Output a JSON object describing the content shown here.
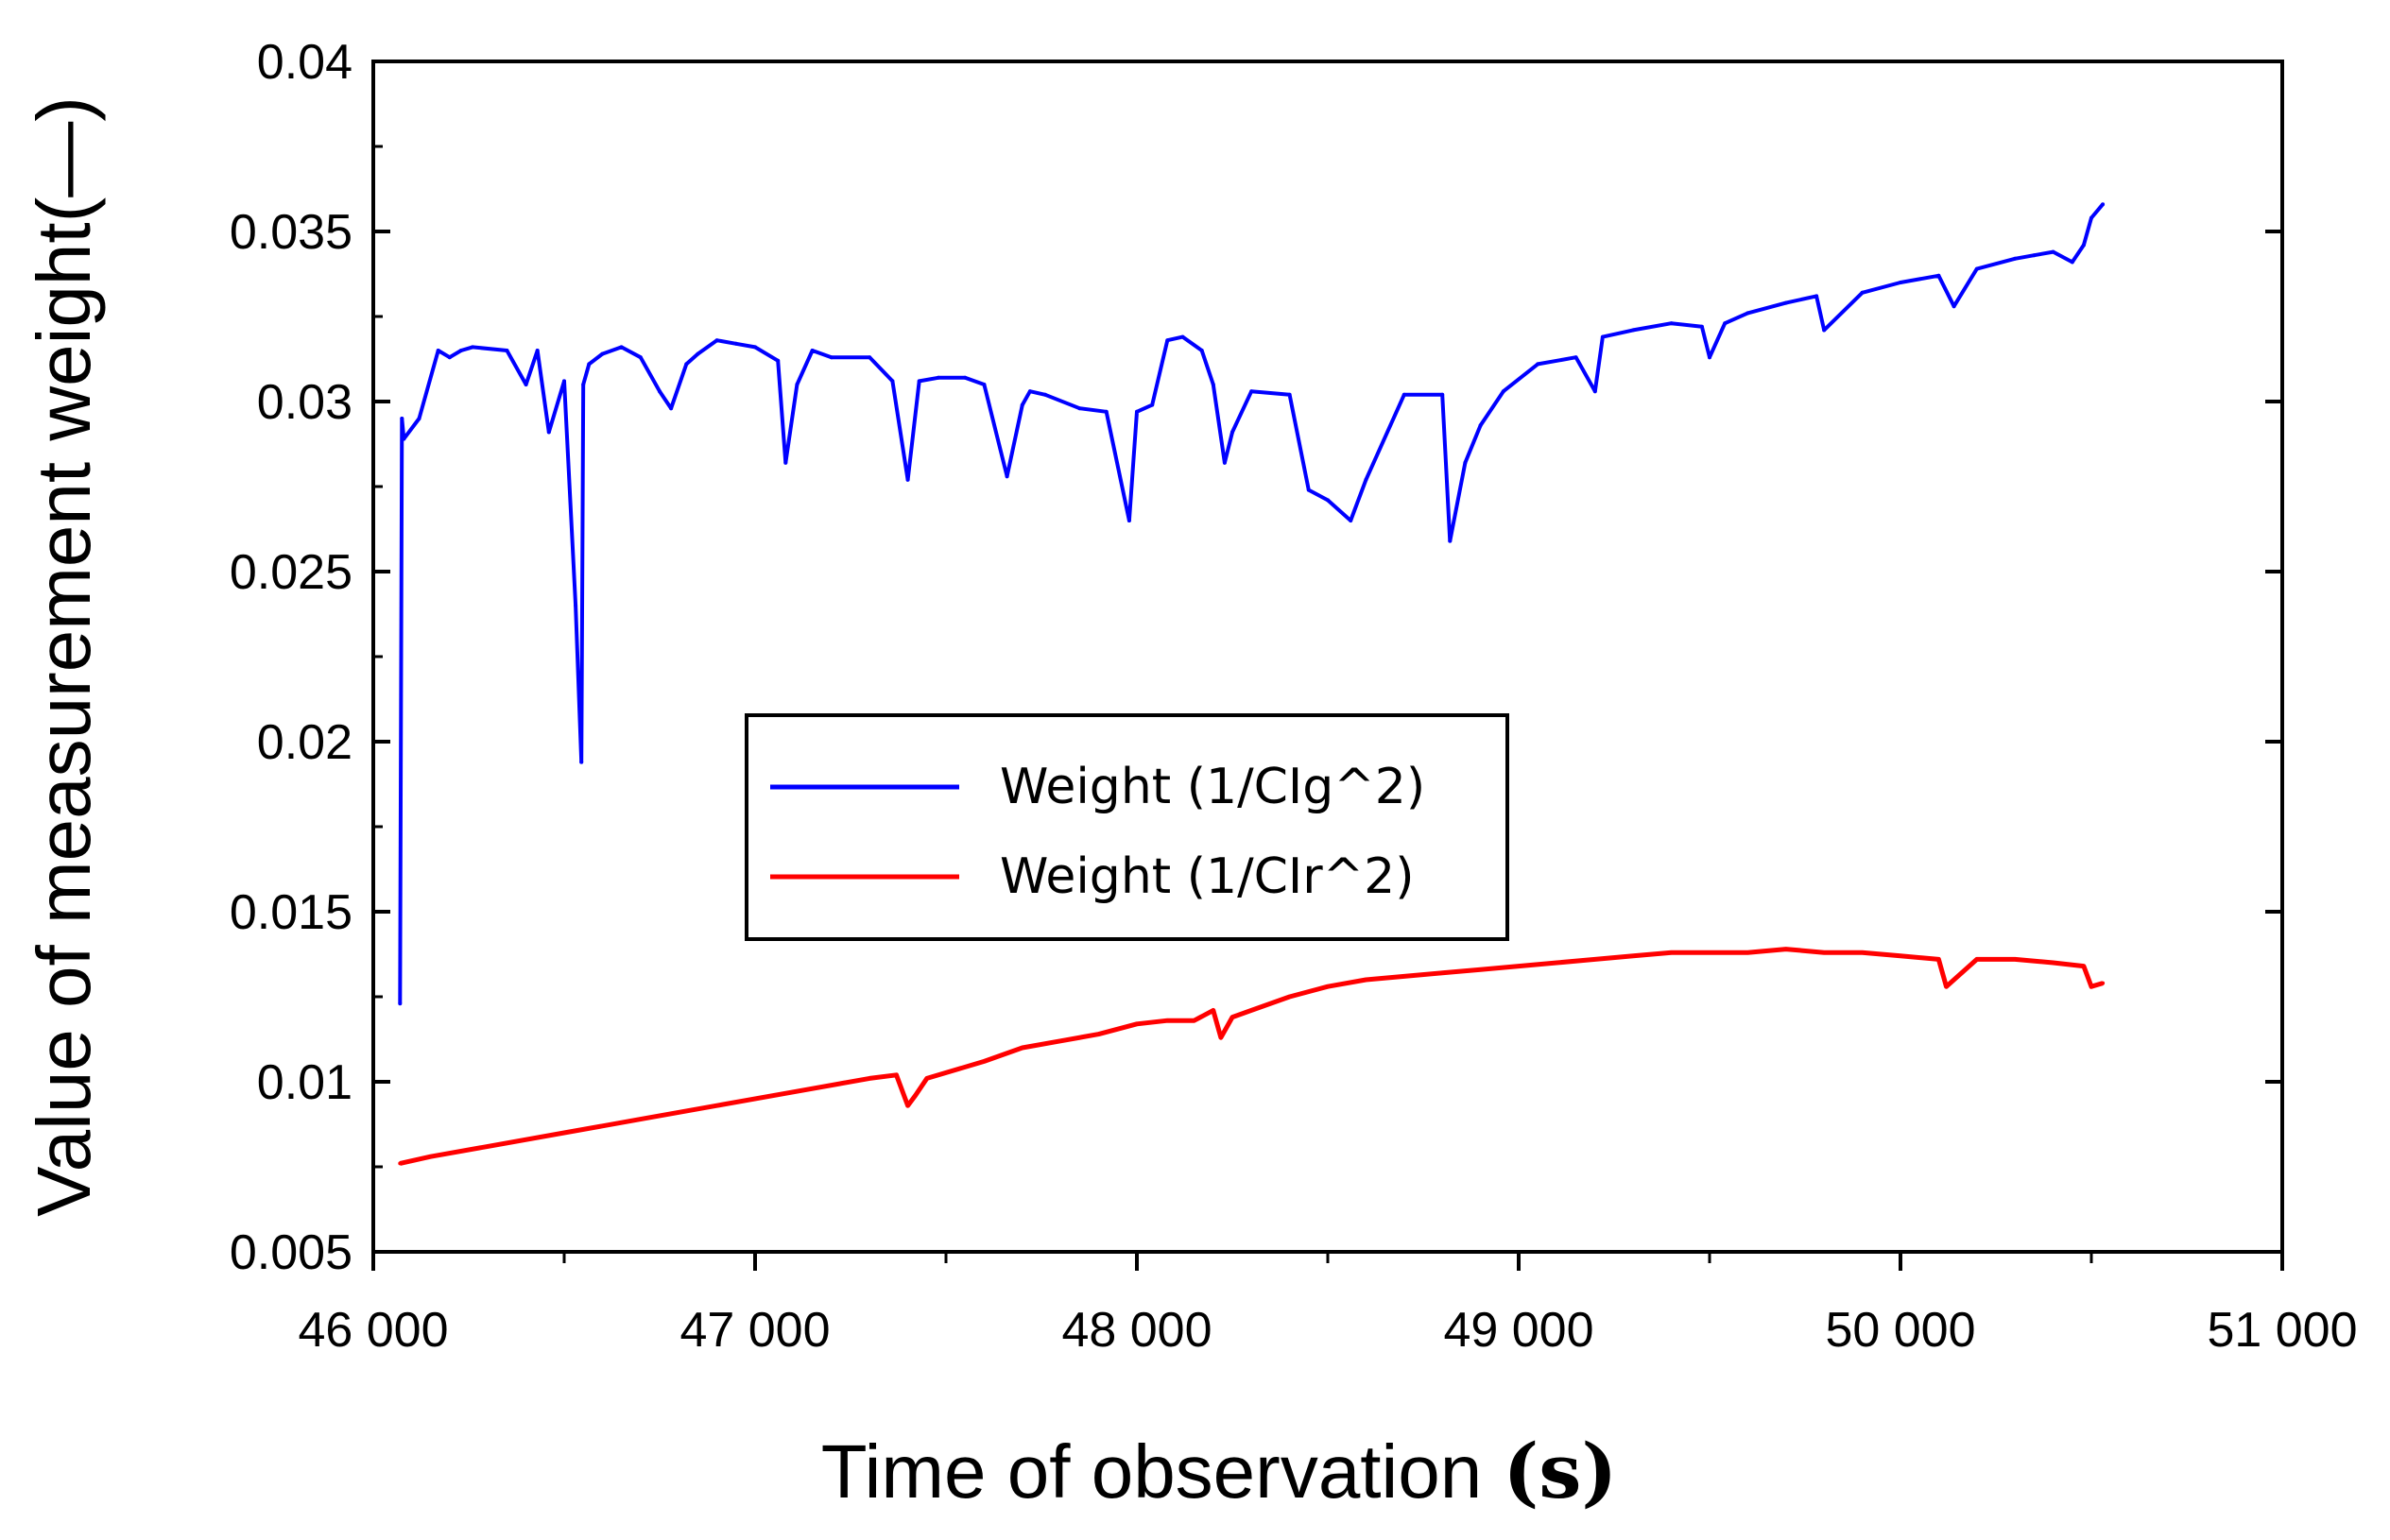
{
  "chart_data": {
    "type": "line",
    "title": "",
    "xlabel": "Time of observation",
    "xlabel_unit": "(s)",
    "ylabel": "Value of measurement weight(—)",
    "xlim": [
      46000,
      51000
    ],
    "ylim": [
      0.005,
      0.04
    ],
    "x_ticks": [
      46000,
      47000,
      48000,
      49000,
      50000,
      51000
    ],
    "x_tick_labels": [
      "46 000",
      "47 000",
      "48 000",
      "49 000",
      "50 000",
      "51 000"
    ],
    "y_ticks": [
      0.005,
      0.01,
      0.015,
      0.02,
      0.025,
      0.03,
      0.035,
      0.04
    ],
    "y_tick_labels": [
      "0.005",
      "0.01",
      "0.015",
      "0.02",
      "0.025",
      "0.03",
      "0.035",
      "0.04"
    ],
    "grid": false,
    "legend_position": "center",
    "series": [
      {
        "name": "Weight (1/CIg^2)",
        "color": "#0000ff",
        "x": [
          46070,
          46075,
          46080,
          46120,
          46170,
          46200,
          46230,
          46260,
          46350,
          46400,
          46430,
          46460,
          46500,
          46530,
          46545,
          46550,
          46565,
          46600,
          46650,
          46700,
          46750,
          46780,
          46820,
          46850,
          46900,
          46950,
          47000,
          47060,
          47080,
          47110,
          47150,
          47200,
          47300,
          47360,
          47400,
          47430,
          47480,
          47550,
          47600,
          47660,
          47700,
          47720,
          47760,
          47850,
          47920,
          47980,
          48000,
          48040,
          48080,
          48120,
          48170,
          48200,
          48230,
          48250,
          48300,
          48400,
          48450,
          48500,
          48560,
          48600,
          48700,
          48800,
          48820,
          48860,
          48900,
          48960,
          49050,
          49150,
          49200,
          49220,
          49300,
          49400,
          49480,
          49500,
          49540,
          49600,
          49700,
          49780,
          49800,
          49900,
          50000,
          50100,
          50140,
          50200,
          50300,
          50350,
          50400,
          50450,
          50480,
          50500,
          50530
        ],
        "values": [
          0.0123,
          0.0295,
          0.0289,
          0.0295,
          0.0315,
          0.0313,
          0.0315,
          0.0316,
          0.0315,
          0.0305,
          0.0315,
          0.0291,
          0.0306,
          0.024,
          0.0194,
          0.0305,
          0.0311,
          0.0314,
          0.0316,
          0.0313,
          0.0303,
          0.0298,
          0.0311,
          0.0314,
          0.0318,
          0.0317,
          0.0316,
          0.0312,
          0.0282,
          0.0305,
          0.0315,
          0.0313,
          0.0313,
          0.0306,
          0.0277,
          0.0306,
          0.0307,
          0.0307,
          0.0305,
          0.0278,
          0.0299,
          0.0303,
          0.0302,
          0.0298,
          0.0297,
          0.0265,
          0.0297,
          0.0299,
          0.0318,
          0.0319,
          0.0315,
          0.0305,
          0.0282,
          0.0291,
          0.0303,
          0.0302,
          0.0274,
          0.0271,
          0.0265,
          0.0277,
          0.0302,
          0.0302,
          0.0259,
          0.0282,
          0.0293,
          0.0303,
          0.0311,
          0.0313,
          0.0303,
          0.0319,
          0.0321,
          0.0323,
          0.0322,
          0.0313,
          0.0323,
          0.0326,
          0.0329,
          0.0331,
          0.0321,
          0.0332,
          0.0335,
          0.0337,
          0.0328,
          0.0339,
          0.0342,
          0.0343,
          0.0344,
          0.0341,
          0.0346,
          0.0354,
          0.0358
        ]
      },
      {
        "name": "Weight (1/CIr^2)",
        "color": "#ff0000",
        "x": [
          46070,
          46150,
          46300,
          46500,
          46700,
          46900,
          47100,
          47300,
          47370,
          47400,
          47420,
          47450,
          47600,
          47700,
          47800,
          47900,
          48000,
          48080,
          48150,
          48200,
          48220,
          48250,
          48300,
          48400,
          48500,
          48600,
          48700,
          48800,
          48900,
          49000,
          49100,
          49200,
          49300,
          49400,
          49500,
          49600,
          49700,
          49800,
          49900,
          50000,
          50100,
          50120,
          50200,
          50300,
          50400,
          50480,
          50500,
          50530
        ],
        "values": [
          0.0076,
          0.0078,
          0.0081,
          0.0085,
          0.0089,
          0.0093,
          0.0097,
          0.0101,
          0.0102,
          0.0093,
          0.0096,
          0.0101,
          0.0106,
          0.011,
          0.0112,
          0.0114,
          0.0117,
          0.0118,
          0.0118,
          0.0121,
          0.0113,
          0.0119,
          0.0121,
          0.0125,
          0.0128,
          0.013,
          0.0131,
          0.0132,
          0.0133,
          0.0134,
          0.0135,
          0.0136,
          0.0137,
          0.0138,
          0.0138,
          0.0138,
          0.0139,
          0.0138,
          0.0138,
          0.0137,
          0.0136,
          0.0128,
          0.0136,
          0.0136,
          0.0135,
          0.0134,
          0.0128,
          0.0129
        ]
      }
    ]
  }
}
